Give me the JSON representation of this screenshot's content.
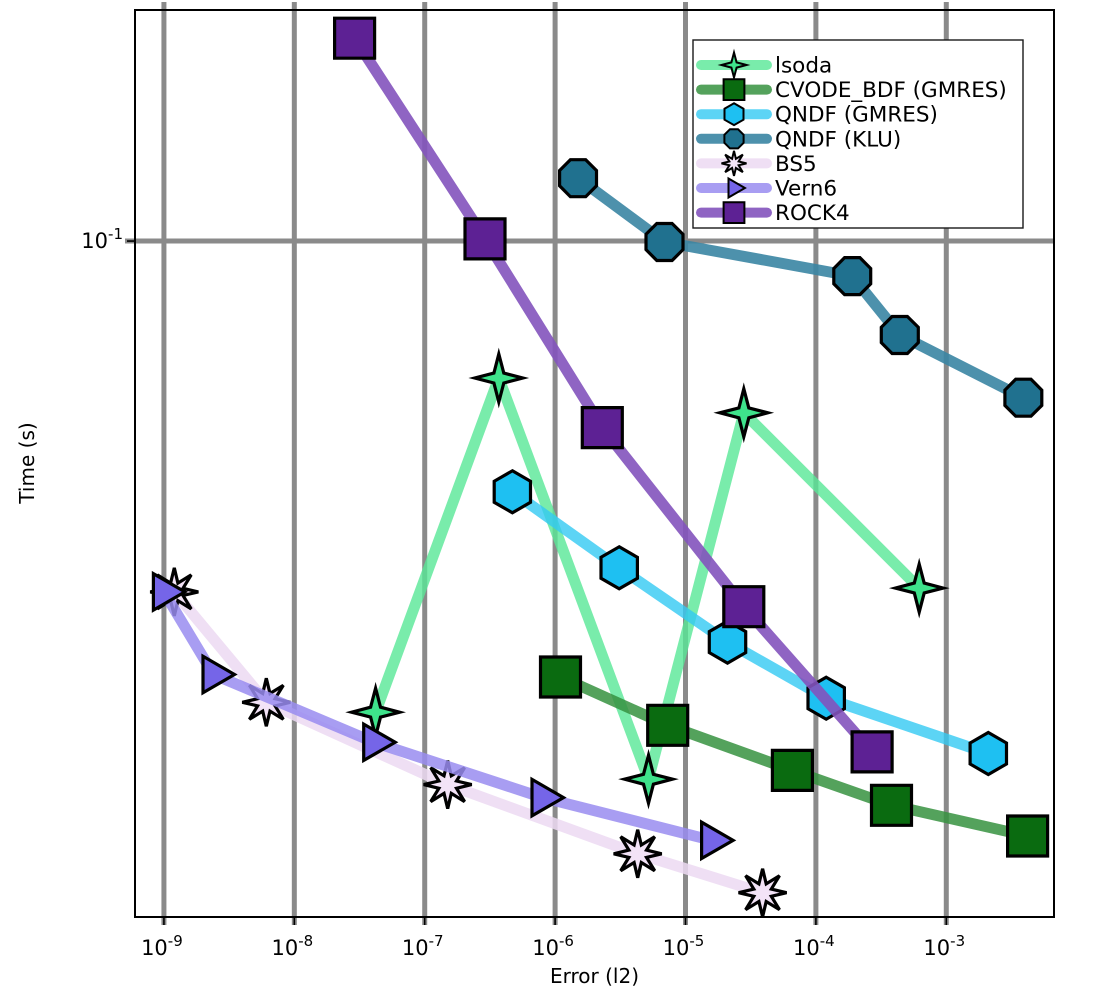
{
  "chart_data": {
    "type": "line",
    "title": "",
    "xlabel": "Error (l2)",
    "ylabel": "Time (s)",
    "x_scale": "log",
    "y_scale": "log",
    "xlim": [
      6e-10,
      0.0067
    ],
    "ylim": [
      0.0108,
      0.214
    ],
    "x_tick_exponents": [
      -9,
      -8,
      -7,
      -6,
      -5,
      -4,
      -3
    ],
    "y_tick_exponents": [
      -1
    ],
    "grid": "on",
    "grid_color": "#8a8a8a",
    "axis_color": "#000000",
    "legend_position": "upper right",
    "series": [
      {
        "name": "lsoda",
        "marker": "star4",
        "line_color": "#57e796",
        "line_alpha": 0.8,
        "marker_color": "#3ee38b",
        "x": [
          4.2e-08,
          3.7e-07,
          5.2e-06,
          2.8e-05,
          0.00062
        ],
        "y": [
          0.0212,
          0.0637,
          0.017,
          0.0568,
          0.0319
        ]
      },
      {
        "name": "CVODE_BDF (GMRES)",
        "marker": "square",
        "line_color": "#36923f",
        "line_alpha": 0.85,
        "marker_color": "#0a6b10",
        "x": [
          1.1e-06,
          7.3e-06,
          6.6e-05,
          0.00038,
          0.0042
        ],
        "y": [
          0.0238,
          0.0203,
          0.0175,
          0.0156,
          0.0141
        ]
      },
      {
        "name": "QNDF (GMRES)",
        "marker": "hexagon",
        "line_color": "#33c9f2",
        "line_alpha": 0.8,
        "marker_color": "#1ec0f2",
        "x": [
          4.7e-07,
          3.1e-06,
          2.1e-05,
          0.00012,
          0.0021
        ],
        "y": [
          0.0438,
          0.0341,
          0.0267,
          0.0222,
          0.0185
        ]
      },
      {
        "name": "QNDF (KLU)",
        "marker": "octagon",
        "line_color": "#3a85a3",
        "line_alpha": 0.9,
        "marker_color": "#20718f",
        "x": [
          1.5e-06,
          6.9e-06,
          0.00019,
          0.00044,
          0.0039
        ],
        "y": [
          0.123,
          0.0997,
          0.0891,
          0.0734,
          0.0597
        ]
      },
      {
        "name": "BS5",
        "marker": "star8",
        "line_color": "#ecd9f2",
        "line_alpha": 0.85,
        "marker_color": "#f3e3f7",
        "x": [
          1.2e-09,
          6.1e-09,
          1.5e-07,
          4.3e-06,
          3.9e-05
        ],
        "y": [
          0.0315,
          0.0219,
          0.0167,
          0.0133,
          0.0117
        ]
      },
      {
        "name": "Vern6",
        "marker": "triangle-right",
        "line_color": "#998cf0",
        "line_alpha": 0.85,
        "marker_color": "#7565e8",
        "x": [
          1e-09,
          2.4e-09,
          4.1e-08,
          8e-07,
          1.6e-05
        ],
        "y": [
          0.0315,
          0.024,
          0.0192,
          0.016,
          0.0139
        ]
      },
      {
        "name": "ROCK4",
        "marker": "square",
        "line_color": "#8353bd",
        "line_alpha": 0.9,
        "marker_color": "#5d2194",
        "x": [
          2.9e-08,
          2.9e-07,
          2.3e-06,
          2.8e-05,
          0.00027
        ],
        "y": [
          0.195,
          0.1007,
          0.0541,
          0.03,
          0.0186
        ]
      }
    ]
  }
}
